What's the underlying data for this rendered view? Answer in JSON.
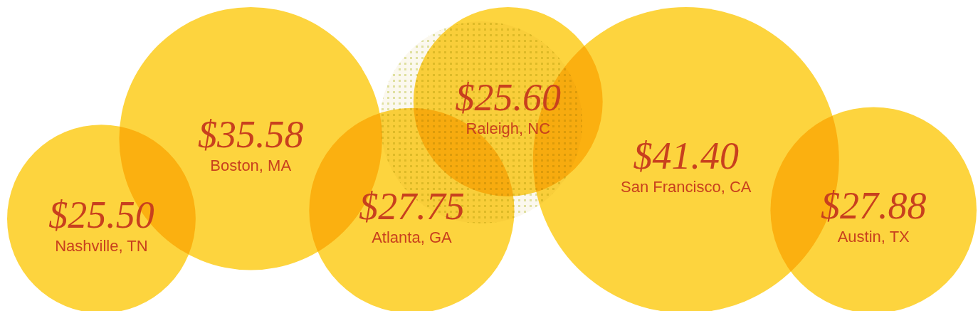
{
  "chart_data": {
    "type": "other",
    "categories": [
      "Nashville, TN",
      "Boston, MA",
      "Atlanta, GA",
      "Raleigh, NC",
      "San Francisco, CA",
      "Austin, TX"
    ],
    "values": [
      25.5,
      35.58,
      27.75,
      25.6,
      41.4,
      27.88
    ],
    "value_labels": [
      "$25.50",
      "$35.58",
      "$27.75",
      "$25.60",
      "$41.40",
      "$27.88"
    ],
    "color": "#fdd43e"
  }
}
